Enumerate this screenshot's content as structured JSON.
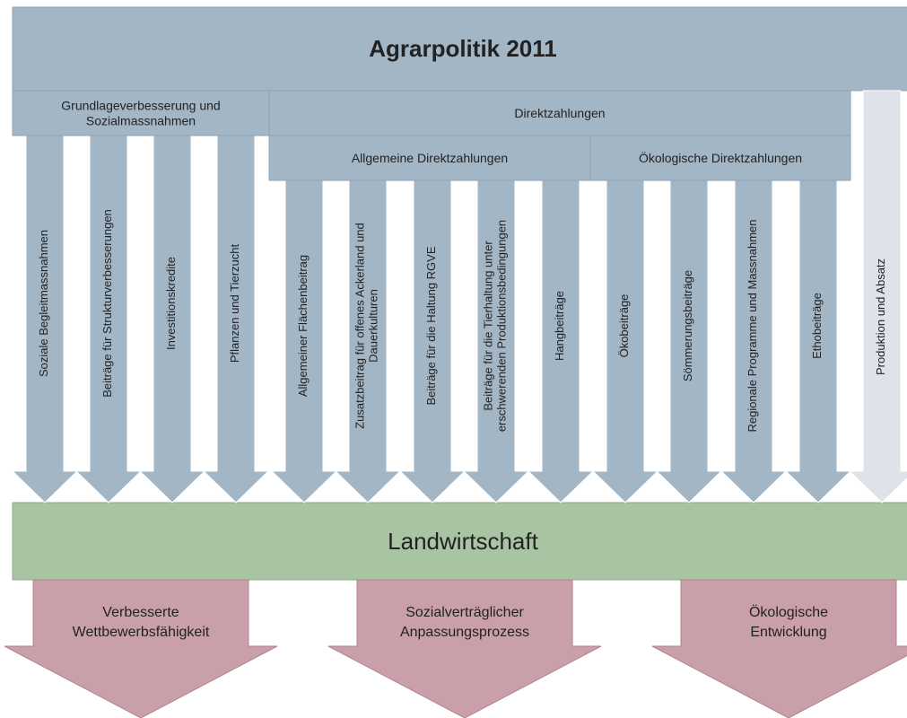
{
  "header": {
    "title": "Agrarpolitik 2011"
  },
  "groups": [
    {
      "lines": [
        "Grundlageverbesserung und",
        "Sozialmassnahmen"
      ]
    },
    {
      "lines": [
        "Direktzahlungen"
      ]
    }
  ],
  "subgroups": [
    {
      "lines": [
        "Allgemeine Direktzahlungen"
      ]
    },
    {
      "lines": [
        "Ökologische Direktzahlungen"
      ]
    }
  ],
  "arrows": [
    {
      "lines": [
        "Soziale Begleitmassnahmen"
      ]
    },
    {
      "lines": [
        "Beiträge für Strukturverbesserungen"
      ]
    },
    {
      "lines": [
        "Investitionskredite"
      ]
    },
    {
      "lines": [
        "Pflanzen und Tierzucht"
      ]
    },
    {
      "lines": [
        "Allgemeiner Flächenbeitrag"
      ]
    },
    {
      "lines": [
        "Zusatzbeitrag für offenes Ackerland und",
        "Dauerkulturen"
      ]
    },
    {
      "lines": [
        "Beiträge für die Haltung RGVE"
      ]
    },
    {
      "lines": [
        "Beiträge für die Tierhaltung unter",
        "erschwerenden Produktionsbedingungen"
      ]
    },
    {
      "lines": [
        "Hangbeiträge"
      ]
    },
    {
      "lines": [
        "Ökobeiträge"
      ]
    },
    {
      "lines": [
        "Sömmerungsbeiträge"
      ]
    },
    {
      "lines": [
        "Regionale Programme und Massnahmen"
      ]
    },
    {
      "lines": [
        "Ethobeiträge"
      ]
    },
    {
      "lines": [
        "Produktion und Absatz"
      ]
    }
  ],
  "base": {
    "title": "Landwirtschaft"
  },
  "outcomes": [
    {
      "lines": [
        "Verbesserte",
        "Wettbewerbsfähigkeit"
      ]
    },
    {
      "lines": [
        "Sozialverträglicher",
        "Anpassungsprozess"
      ]
    },
    {
      "lines": [
        "Ökologische",
        "Entwicklung"
      ]
    }
  ]
}
